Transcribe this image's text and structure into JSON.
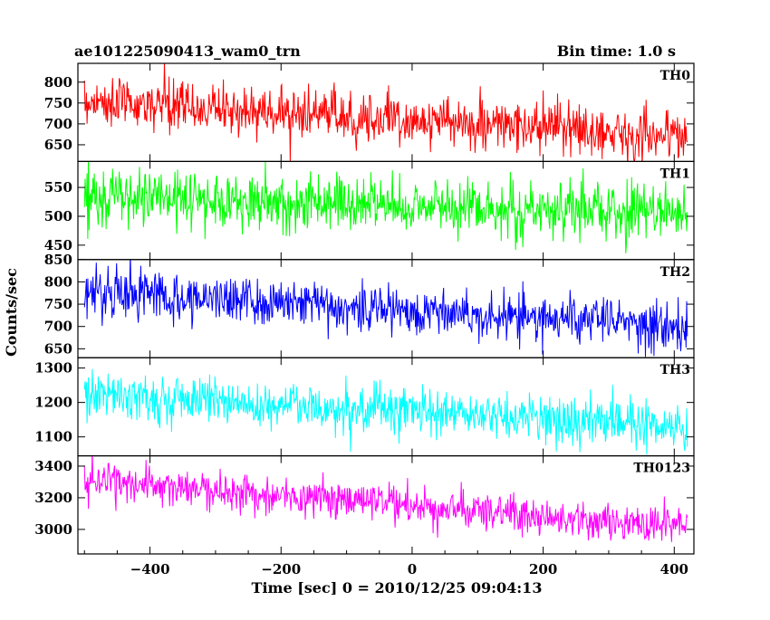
{
  "header": {
    "title": "ae101225090413_wam0_trn",
    "bin_time": "Bin time: 1.0 s"
  },
  "chart_data": {
    "type": "line",
    "xlabel": "Time [sec] 0 = 2010/12/25 09:04:13",
    "ylabel": "Counts/sec",
    "xlim": [
      -510,
      430
    ],
    "x_ticks": [
      -400,
      -200,
      0,
      200,
      400
    ],
    "x_tick_labels": [
      "−400",
      "−200",
      "0",
      "200",
      "400"
    ],
    "series_x_range": [
      -500,
      420
    ],
    "bin_seconds": 1.0,
    "panels": [
      {
        "name": "TH0",
        "color": "#ff0000",
        "ylim": [
          610,
          845
        ],
        "y_ticks": [
          650,
          700,
          750,
          800
        ],
        "trend_start": 755,
        "trend_end": 670,
        "scatter_sigma": 30
      },
      {
        "name": "TH1",
        "color": "#00ff00",
        "ylim": [
          425,
          595
        ],
        "y_ticks": [
          450,
          500,
          550
        ],
        "trend_start": 535,
        "trend_end": 505,
        "scatter_sigma": 25
      },
      {
        "name": "TH2",
        "color": "#0000ff",
        "ylim": [
          630,
          850
        ],
        "y_ticks": [
          650,
          700,
          750,
          800,
          850
        ],
        "trend_start": 780,
        "trend_end": 700,
        "scatter_sigma": 27
      },
      {
        "name": "TH3",
        "color": "#00ffff",
        "ylim": [
          1045,
          1330
        ],
        "y_ticks": [
          1100,
          1200,
          1300
        ],
        "trend_start": 1225,
        "trend_end": 1130,
        "scatter_sigma": 35
      },
      {
        "name": "TH0123",
        "color": "#ff00ff",
        "ylim": [
          2845,
          3465
        ],
        "y_ticks": [
          3000,
          3200,
          3400
        ],
        "trend_start": 3310,
        "trend_end": 3010,
        "scatter_sigma": 60
      }
    ]
  }
}
